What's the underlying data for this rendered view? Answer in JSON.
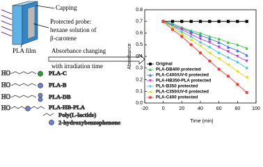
{
  "diagram": {
    "capping": "Capping",
    "probe": [
      "Protected probe:",
      "hexane solution of",
      "β-carotene"
    ],
    "film": "PLA film",
    "change": [
      "Absorbance changing",
      "with irradiation time"
    ],
    "ho": "HO",
    "polymers": [
      "PLA-C",
      "PLA-B",
      "PLA-DB",
      "PLA-HB-PLA"
    ],
    "key": [
      "Poly(L-lactide)",
      "2-hydroxybenzophenone"
    ]
  },
  "chart_data": {
    "type": "line",
    "x_label": "Time (min)",
    "y_label": "Absorbance",
    "x": [
      0,
      10,
      20,
      30,
      40,
      50,
      60,
      70,
      80,
      90
    ],
    "xlim": [
      -20,
      100
    ],
    "xticks": [
      -20,
      0,
      20,
      40,
      60,
      80,
      100
    ],
    "ylim": [
      0,
      0.8
    ],
    "yticks": [
      {
        "value": 0,
        "label": "0.0"
      },
      {
        "value": 0.1,
        "label": "0.1"
      },
      {
        "value": 0.2,
        "label": "0.2"
      },
      {
        "value": 0.3,
        "label": "0.3"
      },
      {
        "value": 0.4,
        "label": "0.4"
      },
      {
        "value": 0.5,
        "label": "0.5"
      },
      {
        "value": 0.6,
        "label": "0.6"
      },
      {
        "value": 0.7,
        "label": "0.7"
      },
      {
        "value": 0.8,
        "label": "0.8"
      }
    ],
    "legend": "lower left",
    "series": [
      {
        "name": "Original",
        "color": "#000000",
        "marker": "square",
        "values": [
          0.7,
          0.7,
          0.7,
          0.7,
          0.7,
          0.7,
          0.7,
          0.7,
          0.7,
          0.7
        ]
      },
      {
        "name": "PLA-DB400 protected",
        "color": "#33cc33",
        "marker": "triangle",
        "values": [
          0.7,
          0.68,
          0.65,
          0.62,
          0.6,
          0.57,
          0.55,
          0.52,
          0.5,
          0.47
        ]
      },
      {
        "name": "PLA-C400/UV-0 protected",
        "color": "#3366ff",
        "marker": "triangle",
        "values": [
          0.7,
          0.67,
          0.64,
          0.61,
          0.58,
          0.55,
          0.52,
          0.48,
          0.45,
          0.41
        ]
      },
      {
        "name": "PLA-HB350-PLA protected",
        "color": "#cc33cc",
        "marker": "triangle-down",
        "values": [
          0.7,
          0.66,
          0.63,
          0.59,
          0.55,
          0.52,
          0.48,
          0.44,
          0.4,
          0.36
        ]
      },
      {
        "name": "PLA-B350 protected",
        "color": "#33cccc",
        "marker": "diamond",
        "values": [
          0.7,
          0.66,
          0.61,
          0.57,
          0.52,
          0.48,
          0.43,
          0.39,
          0.35,
          0.3
        ]
      },
      {
        "name": "PLA-C350/UV-0 protected",
        "color": "#dddd00",
        "marker": "triangle-left",
        "values": [
          0.7,
          0.65,
          0.59,
          0.54,
          0.49,
          0.43,
          0.38,
          0.33,
          0.27,
          0.22
        ]
      },
      {
        "name": "PLA-C400 protected",
        "color": "#ff3333",
        "marker": "circle",
        "values": [
          0.7,
          0.63,
          0.57,
          0.5,
          0.43,
          0.36,
          0.29,
          0.23,
          0.16,
          0.09
        ]
      }
    ]
  }
}
